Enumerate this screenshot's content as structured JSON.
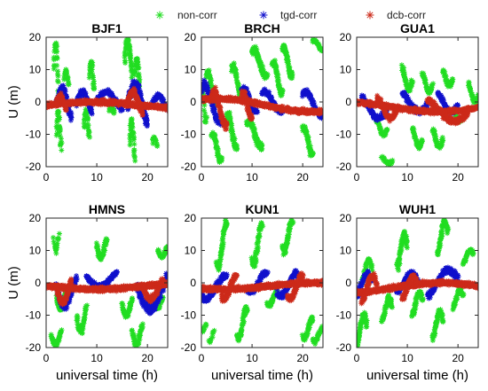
{
  "chart_data": {
    "type": "scatter",
    "marker": "asterisk",
    "legend": {
      "placement": "top",
      "entries": [
        {
          "name": "non-corr",
          "color": "#22dd22"
        },
        {
          "name": "tgd-corr",
          "color": "#1010cc"
        },
        {
          "name": "dcb-corr",
          "color": "#cc2a1a"
        }
      ]
    },
    "xlabel": "universal time (h)",
    "ylabel": "U (m)",
    "xlim": [
      0,
      24
    ],
    "ylim": [
      -20,
      20
    ],
    "xticks": [
      0,
      10,
      20
    ],
    "yticks": [
      -20,
      -10,
      0,
      10,
      20
    ],
    "grid": false,
    "layout": "2x3 subplots",
    "panels": [
      {
        "title": "BJF1",
        "show_ylabel": true,
        "show_xlabel": false,
        "series": [
          {
            "name": "non-corr",
            "clusters": [
              [
                1.5,
                2.5,
                0,
                18,
                1.5
              ],
              [
                2,
                3,
                -16,
                -4,
                1.5
              ],
              [
                3.5,
                4.5,
                4,
                10,
                1
              ],
              [
                7.5,
                8.5,
                -12,
                -3,
                1.5
              ],
              [
                8.5,
                9.5,
                3,
                12,
                1.5
              ],
              [
                12.5,
                13.5,
                -4,
                -1,
                0.8
              ],
              [
                15.5,
                17,
                8,
                19,
                1.8
              ],
              [
                16.5,
                17.5,
                -19,
                -6,
                1.8
              ],
              [
                17.5,
                18.5,
                4,
                13,
                1.5
              ],
              [
                21,
                22,
                -14,
                -11,
                0.6
              ]
            ]
          },
          {
            "name": "tgd-corr",
            "clusters": [
              [
                2,
                5,
                -6,
                4,
                1.5
              ],
              [
                6,
                9,
                -4,
                3,
                1.2
              ],
              [
                10,
                15,
                -3,
                3,
                1
              ],
              [
                16,
                20,
                -8,
                5,
                1.8
              ],
              [
                21,
                24,
                -3,
                2,
                0.8
              ]
            ]
          },
          {
            "name": "dcb-corr",
            "clusters": [
              [
                0,
                24,
                -2,
                0,
                1.4
              ],
              [
                2,
                4,
                -3,
                2,
                1.2
              ],
              [
                16,
                19,
                -4,
                3,
                1.4
              ]
            ]
          }
        ]
      },
      {
        "title": "BRCH",
        "show_ylabel": false,
        "show_xlabel": false,
        "series": [
          {
            "name": "non-corr",
            "clusters": [
              [
                0,
                1,
                -6,
                4,
                1
              ],
              [
                1,
                3,
                0,
                9,
                1.5
              ],
              [
                2,
                4,
                -18,
                -10,
                1.5
              ],
              [
                5,
                7,
                -14,
                -4,
                1.5
              ],
              [
                6,
                8,
                2,
                11,
                1.5
              ],
              [
                9,
                12,
                -14,
                -6,
                1.5
              ],
              [
                10,
                13,
                8,
                16,
                1.5
              ],
              [
                14,
                16,
                3,
                12,
                1.5
              ],
              [
                16,
                18,
                8,
                17,
                1.5
              ],
              [
                20,
                22,
                -16,
                -8,
                1.5
              ],
              [
                22,
                24,
                16,
                19,
                0.8
              ]
            ]
          },
          {
            "name": "tgd-corr",
            "clusters": [
              [
                0,
                4,
                -6,
                5,
                1.2
              ],
              [
                8,
                11,
                -3,
                4,
                1
              ],
              [
                12,
                16,
                -3,
                3,
                1
              ],
              [
                20,
                24,
                -4,
                3,
                1
              ]
            ]
          },
          {
            "name": "dcb-corr",
            "clusters": [
              [
                0,
                24,
                -3,
                1,
                1.5
              ],
              [
                2,
                5,
                -7,
                3,
                1.5
              ],
              [
                8,
                10,
                -5,
                3,
                1.2
              ]
            ]
          }
        ]
      },
      {
        "title": "GUA1",
        "show_ylabel": false,
        "show_xlabel": false,
        "series": [
          {
            "name": "non-corr",
            "clusters": [
              [
                5,
                7,
                -19,
                -17,
                0.6
              ],
              [
                4,
                6,
                -10,
                -6,
                0.8
              ],
              [
                9,
                11,
                4,
                11,
                1.2
              ],
              [
                11,
                13,
                -14,
                -8,
                1
              ],
              [
                13,
                15,
                3,
                9,
                1
              ],
              [
                15,
                17,
                -14,
                -8,
                1.2
              ],
              [
                17,
                19,
                5,
                10,
                1
              ],
              [
                19,
                21,
                -6,
                -2,
                0.8
              ],
              [
                22,
                24,
                0,
                6,
                0.8
              ]
            ]
          },
          {
            "name": "tgd-corr",
            "clusters": [
              [
                1,
                6,
                -5,
                2,
                1
              ],
              [
                9,
                14,
                -3,
                3,
                1
              ],
              [
                16,
                20,
                -3,
                3,
                1
              ]
            ]
          },
          {
            "name": "dcb-corr",
            "clusters": [
              [
                0,
                24,
                -3,
                0,
                1.2
              ],
              [
                4,
                8,
                -5,
                2,
                1.1
              ],
              [
                14,
                22,
                -6,
                1,
                1.2
              ]
            ]
          }
        ]
      },
      {
        "title": "HMNS",
        "show_ylabel": true,
        "show_xlabel": true,
        "series": [
          {
            "name": "non-corr",
            "clusters": [
              [
                1,
                3,
                -19,
                -14,
                1
              ],
              [
                1.5,
                2.5,
                10,
                16,
                0.8
              ],
              [
                2,
                4,
                -8,
                -2,
                1
              ],
              [
                6,
                8,
                -15,
                -6,
                1.2
              ],
              [
                10,
                12,
                8,
                15,
                1.2
              ],
              [
                15,
                17,
                -10,
                -4,
                1.2
              ],
              [
                17,
                19,
                -19,
                -12,
                1.2
              ],
              [
                22,
                24,
                8,
                12,
                1
              ],
              [
                21,
                23,
                -8,
                -4,
                0.8
              ]
            ]
          },
          {
            "name": "tgd-corr",
            "clusters": [
              [
                2,
                6,
                -7,
                3,
                1.2
              ],
              [
                8,
                14,
                -1,
                4,
                1.2
              ],
              [
                18,
                24,
                -8,
                4,
                1.5
              ]
            ]
          },
          {
            "name": "dcb-corr",
            "clusters": [
              [
                0,
                24,
                -2,
                0,
                1.5
              ],
              [
                2,
                5,
                -6,
                2,
                1.4
              ],
              [
                19,
                23,
                -5,
                2,
                1.4
              ]
            ]
          }
        ]
      },
      {
        "title": "KUN1",
        "show_ylabel": false,
        "show_xlabel": true,
        "series": [
          {
            "name": "non-corr",
            "clusters": [
              [
                0,
                1,
                -15,
                -13,
                0.6
              ],
              [
                1.5,
                2.5,
                -18,
                -15,
                0.5
              ],
              [
                3,
                5,
                5,
                18,
                1.6
              ],
              [
                7,
                9,
                -17,
                -8,
                1.5
              ],
              [
                10,
                12,
                6,
                18,
                1.5
              ],
              [
                13,
                15,
                -7,
                -3,
                1
              ],
              [
                16,
                18,
                10,
                19,
                1.5
              ],
              [
                20,
                22,
                -17,
                -11,
                1.2
              ],
              [
                22,
                24,
                -18,
                -14,
                0.8
              ]
            ]
          },
          {
            "name": "tgd-corr",
            "clusters": [
              [
                0,
                5,
                -5,
                2,
                1.2
              ],
              [
                9,
                13,
                -3,
                3,
                1
              ],
              [
                15,
                19,
                -4,
                3,
                1.2
              ]
            ]
          },
          {
            "name": "dcb-corr",
            "clusters": [
              [
                0,
                24,
                -2,
                0,
                1.5
              ],
              [
                4,
                7,
                -5,
                2,
                1.2
              ],
              [
                17,
                20,
                -5,
                2,
                1.2
              ]
            ]
          }
        ]
      },
      {
        "title": "WUH1",
        "show_ylabel": false,
        "show_xlabel": true,
        "series": [
          {
            "name": "non-corr",
            "clusters": [
              [
                0,
                2,
                -19,
                -10,
                1.5
              ],
              [
                1,
                3,
                0,
                7,
                1.2
              ],
              [
                5,
                7,
                -12,
                -5,
                1.2
              ],
              [
                8,
                10,
                4,
                15,
                1.5
              ],
              [
                11,
                13,
                -10,
                -3,
                1.2
              ],
              [
                15,
                17,
                -17,
                -9,
                1.5
              ],
              [
                16,
                18,
                9,
                19,
                1.5
              ],
              [
                19,
                21,
                -8,
                -2,
                1
              ],
              [
                21,
                23,
                6,
                10,
                1
              ]
            ]
          },
          {
            "name": "tgd-corr",
            "clusters": [
              [
                0,
                3,
                -4,
                3,
                1
              ],
              [
                8,
                12,
                -3,
                3,
                1
              ],
              [
                14,
                20,
                -4,
                4,
                1.2
              ]
            ]
          },
          {
            "name": "dcb-corr",
            "clusters": [
              [
                0,
                24,
                -3,
                0,
                1.5
              ],
              [
                1,
                4,
                -6,
                2,
                1.2
              ],
              [
                9,
                12,
                -5,
                2,
                1.2
              ]
            ]
          }
        ]
      }
    ]
  }
}
